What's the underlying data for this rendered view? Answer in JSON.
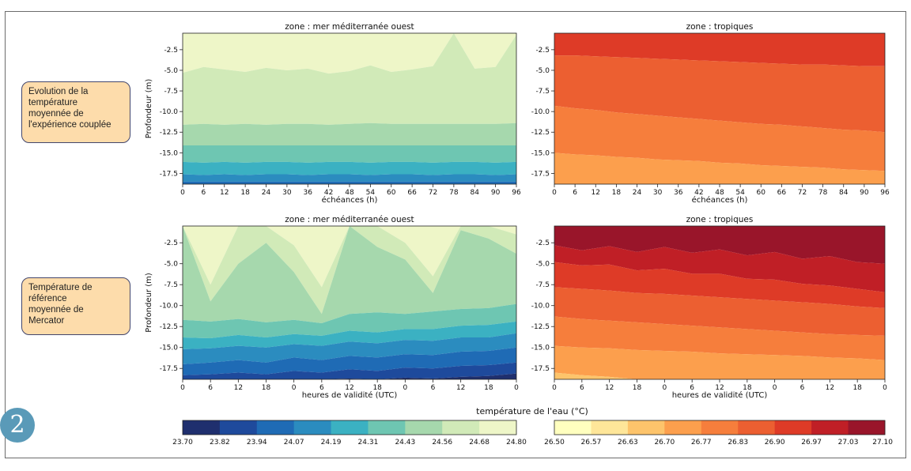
{
  "row_labels": [
    "Evolution de la\ntempérature\nmoyennée de\nl'expérience couplée",
    "Température de\nréférence\nmoyennée de\nMercator"
  ],
  "badge": "2",
  "colorbar_title": "température de l'eau (°C)",
  "colorbars": {
    "cool": {
      "ticks": [
        "23.70",
        "23.82",
        "23.94",
        "24.07",
        "24.19",
        "24.31",
        "24.43",
        "24.56",
        "24.68",
        "24.80"
      ],
      "colors": [
        "#1f2f6e",
        "#1e4a9c",
        "#1f6bb5",
        "#2b8cbf",
        "#3bb1c2",
        "#6ec6b2",
        "#a6d8ad",
        "#d1eab8",
        "#eef6c8"
      ]
    },
    "warm": {
      "ticks": [
        "26.50",
        "26.57",
        "26.63",
        "26.70",
        "26.77",
        "26.83",
        "26.90",
        "26.97",
        "27.03",
        "27.10"
      ],
      "colors": [
        "#ffffbf",
        "#fee699",
        "#fdc46b",
        "#fc9f4d",
        "#f67e3c",
        "#ec5f31",
        "#de3b27",
        "#c01f26",
        "#99152a"
      ]
    }
  },
  "chart_data": [
    {
      "type": "heatmap",
      "title": "zone : mer méditerranée ouest",
      "xlabel": "échéances (h)",
      "ylabel": "Profondeur (m)",
      "x_ticks": [
        "0",
        "6",
        "12",
        "18",
        "24",
        "30",
        "36",
        "42",
        "48",
        "54",
        "60",
        "66",
        "72",
        "78",
        "84",
        "90",
        "96"
      ],
      "y_ticks": [
        "-2.5",
        "-5.0",
        "-7.5",
        "-10.0",
        "-12.5",
        "-15.0",
        "-17.5"
      ],
      "ylim": [
        -18.8,
        -0.5
      ],
      "colorscale": "cool",
      "levels": [
        {
          "value": 24.74,
          "top_depth": [
            -0.5,
            -0.5,
            -0.5,
            -0.5,
            -0.5,
            -0.5,
            -0.5,
            -0.5,
            -0.5,
            -0.5,
            -0.5,
            -0.5,
            -0.5,
            -0.5,
            -0.5,
            -0.5,
            -0.5
          ]
        },
        {
          "value": 24.62,
          "top_depth": [
            -5.3,
            -4.6,
            -4.9,
            -5.2,
            -4.7,
            -5.0,
            -4.8,
            -5.4,
            -5.1,
            -4.4,
            -5.2,
            -4.9,
            -4.5,
            -0.5,
            -4.8,
            -4.6,
            -0.7
          ]
        },
        {
          "value": 24.5,
          "top_depth": [
            -11.6,
            -11.5,
            -11.6,
            -11.5,
            -11.6,
            -11.5,
            -11.5,
            -11.6,
            -11.5,
            -11.4,
            -11.5,
            -11.5,
            -11.5,
            -11.5,
            -11.5,
            -11.5,
            -11.4
          ]
        },
        {
          "value": 24.37,
          "top_depth": [
            -14.1,
            -14.1,
            -14.1,
            -14.1,
            -14.1,
            -14.1,
            -14.1,
            -14.1,
            -14.1,
            -14.1,
            -14.1,
            -14.1,
            -14.1,
            -14.1,
            -14.1,
            -14.1,
            -14.1
          ]
        },
        {
          "value": 24.25,
          "top_depth": [
            -16.1,
            -16.2,
            -16.1,
            -16.2,
            -16.1,
            -16.1,
            -16.2,
            -16.1,
            -16.1,
            -16.2,
            -16.1,
            -16.1,
            -16.2,
            -16.1,
            -16.1,
            -16.2,
            -16.1
          ]
        },
        {
          "value": 24.13,
          "top_depth": [
            -17.6,
            -17.7,
            -17.6,
            -17.7,
            -17.6,
            -17.6,
            -17.7,
            -17.6,
            -17.6,
            -17.7,
            -17.6,
            -17.6,
            -17.7,
            -17.6,
            -17.6,
            -17.7,
            -17.6
          ]
        },
        {
          "value": 24.0,
          "top_depth": [
            -18.5,
            -18.5,
            -18.5,
            -18.5,
            -18.5,
            -18.5,
            -18.5,
            -18.5,
            -18.5,
            -18.5,
            -18.5,
            -18.5,
            -18.5,
            -18.5,
            -18.5,
            -18.5,
            -18.5
          ]
        }
      ]
    },
    {
      "type": "heatmap",
      "title": "zone : tropiques",
      "xlabel": "échéances (h)",
      "ylabel": "",
      "x_ticks": [
        "0",
        "6",
        "12",
        "18",
        "24",
        "30",
        "36",
        "42",
        "48",
        "54",
        "60",
        "66",
        "72",
        "78",
        "84",
        "90",
        "96"
      ],
      "y_ticks": [
        "-2.5",
        "-5.0",
        "-7.5",
        "-10.0",
        "-12.5",
        "-15.0",
        "-17.5"
      ],
      "ylim": [
        -18.8,
        -0.5
      ],
      "colorscale": "warm",
      "levels": [
        {
          "value": 27.0,
          "top_depth": [
            -0.5,
            -0.5,
            -0.5,
            -0.5,
            -0.5,
            -0.5,
            -0.5,
            -0.5,
            -0.5,
            -0.5,
            -0.5,
            -0.5,
            -0.5,
            -0.5,
            -0.5,
            -0.5,
            -0.5
          ]
        },
        {
          "value": 26.94,
          "top_depth": [
            -0.5,
            -0.5,
            -0.5,
            -0.5,
            -0.5,
            -0.5,
            -0.5,
            -0.5,
            -0.5,
            -0.5,
            -0.5,
            -0.5,
            -0.5,
            -0.5,
            -0.5,
            -0.5,
            -0.5
          ]
        },
        {
          "value": 26.87,
          "top_depth": [
            -3.2,
            -3.2,
            -3.3,
            -3.4,
            -3.5,
            -3.6,
            -3.7,
            -3.8,
            -3.9,
            -4.0,
            -4.1,
            -4.2,
            -4.3,
            -4.3,
            -4.4,
            -4.5,
            -4.5
          ]
        },
        {
          "value": 26.8,
          "top_depth": [
            -9.3,
            -9.6,
            -9.8,
            -10.1,
            -10.3,
            -10.5,
            -10.7,
            -10.9,
            -11.1,
            -11.3,
            -11.5,
            -11.6,
            -11.8,
            -12.0,
            -12.2,
            -12.3,
            -12.5
          ]
        },
        {
          "value": 26.73,
          "top_depth": [
            -15.0,
            -15.2,
            -15.3,
            -15.5,
            -15.6,
            -15.8,
            -15.9,
            -16.0,
            -16.2,
            -16.3,
            -16.5,
            -16.6,
            -16.7,
            -16.8,
            -17.0,
            -17.1,
            -17.2
          ]
        }
      ]
    },
    {
      "type": "heatmap",
      "title": "zone : mer méditerranée ouest",
      "xlabel": "heures de validité (UTC)",
      "ylabel": "Profondeur (m)",
      "x_ticks": [
        "0",
        "6",
        "12",
        "18",
        "0",
        "6",
        "12",
        "18",
        "0",
        "6",
        "12",
        "18",
        "0"
      ],
      "y_ticks": [
        "-2.5",
        "-5.0",
        "-7.5",
        "-10.0",
        "-12.5",
        "-15.0",
        "-17.5"
      ],
      "ylim": [
        -18.8,
        -0.5
      ],
      "colorscale": "cool",
      "levels": [
        {
          "value": 24.74,
          "top_depth": [
            -0.5,
            -0.5,
            -0.5,
            -0.5,
            -0.5,
            -0.5,
            -0.5,
            -0.5,
            -0.5,
            -0.5,
            -0.5,
            -0.5,
            -0.5
          ]
        },
        {
          "value": 24.62,
          "top_depth": [
            -0.5,
            -7.5,
            -0.5,
            -0.5,
            -2.8,
            -7.8,
            -0.5,
            -0.5,
            -2.5,
            -6.5,
            -0.5,
            -0.5,
            -1.5
          ]
        },
        {
          "value": 24.5,
          "top_depth": [
            -0.5,
            -9.5,
            -5.0,
            -2.5,
            -6.0,
            -11.0,
            -0.5,
            -3.0,
            -4.5,
            -8.5,
            -1.0,
            -2.0,
            -3.8
          ]
        },
        {
          "value": 24.37,
          "top_depth": [
            -11.7,
            -11.9,
            -11.6,
            -12.0,
            -11.7,
            -12.1,
            -11.0,
            -10.8,
            -11.0,
            -10.7,
            -10.4,
            -10.3,
            -9.8
          ]
        },
        {
          "value": 24.25,
          "top_depth": [
            -13.8,
            -13.9,
            -13.5,
            -13.8,
            -13.4,
            -13.6,
            -13.0,
            -13.2,
            -12.8,
            -12.8,
            -12.4,
            -12.3,
            -11.9
          ]
        },
        {
          "value": 24.13,
          "top_depth": [
            -15.2,
            -15.1,
            -14.8,
            -15.0,
            -14.6,
            -14.8,
            -14.3,
            -14.5,
            -14.1,
            -14.2,
            -13.8,
            -13.8,
            -13.3
          ]
        },
        {
          "value": 24.0,
          "top_depth": [
            -17.0,
            -16.8,
            -16.5,
            -16.8,
            -16.2,
            -16.5,
            -16.0,
            -16.2,
            -15.8,
            -15.9,
            -15.5,
            -15.4,
            -15.0
          ]
        },
        {
          "value": 23.88,
          "top_depth": [
            -18.3,
            -18.2,
            -18.0,
            -18.2,
            -17.8,
            -18.0,
            -17.6,
            -17.8,
            -17.4,
            -17.5,
            -17.2,
            -17.1,
            -16.8
          ]
        },
        {
          "value": 23.76,
          "top_depth": [
            -18.8,
            -18.8,
            -18.8,
            -18.8,
            -18.8,
            -18.8,
            -18.7,
            -18.8,
            -18.6,
            -18.7,
            -18.5,
            -18.4,
            -18.1
          ]
        }
      ]
    },
    {
      "type": "heatmap",
      "title": "zone : tropiques",
      "xlabel": "heures de validité (UTC)",
      "ylabel": "",
      "x_ticks": [
        "0",
        "6",
        "12",
        "18",
        "0",
        "6",
        "12",
        "18",
        "0",
        "6",
        "12",
        "18",
        "0"
      ],
      "y_ticks": [
        "-2.5",
        "-5.0",
        "-7.5",
        "-10.0",
        "-12.5",
        "-15.0",
        "-17.5"
      ],
      "ylim": [
        -18.8,
        -0.5
      ],
      "colorscale": "warm",
      "levels": [
        {
          "value": 27.07,
          "top_depth": [
            -0.5,
            -0.5,
            -0.5,
            -0.5,
            -0.5,
            -0.5,
            -0.5,
            -0.5,
            -0.5,
            -0.5,
            -0.5,
            -0.5,
            -0.5
          ]
        },
        {
          "value": 27.0,
          "top_depth": [
            -2.8,
            -3.4,
            -2.9,
            -3.6,
            -3.0,
            -3.7,
            -3.3,
            -4.0,
            -3.6,
            -4.4,
            -4.1,
            -4.8,
            -5.0
          ]
        },
        {
          "value": 26.94,
          "top_depth": [
            -4.8,
            -5.2,
            -5.1,
            -5.8,
            -5.6,
            -6.2,
            -6.2,
            -6.8,
            -6.9,
            -7.4,
            -7.6,
            -8.0,
            -8.4
          ]
        },
        {
          "value": 26.87,
          "top_depth": [
            -7.8,
            -8.0,
            -8.2,
            -8.5,
            -8.6,
            -8.8,
            -9.0,
            -9.2,
            -9.4,
            -9.6,
            -9.8,
            -10.1,
            -10.3
          ]
        },
        {
          "value": 26.8,
          "top_depth": [
            -11.3,
            -11.6,
            -11.8,
            -12.0,
            -12.2,
            -12.4,
            -12.6,
            -12.8,
            -13.0,
            -13.2,
            -13.4,
            -13.5,
            -13.6
          ]
        },
        {
          "value": 26.73,
          "top_depth": [
            -14.8,
            -15.0,
            -15.1,
            -15.3,
            -15.4,
            -15.5,
            -15.7,
            -15.8,
            -15.9,
            -16.0,
            -16.2,
            -16.3,
            -16.5
          ]
        },
        {
          "value": 26.66,
          "top_depth": [
            -18.0,
            -18.3,
            -18.5,
            -18.8,
            -18.8,
            -18.8,
            -18.8,
            -18.8,
            -18.8,
            -18.8,
            -18.8,
            -18.8,
            -18.8
          ]
        }
      ]
    }
  ]
}
